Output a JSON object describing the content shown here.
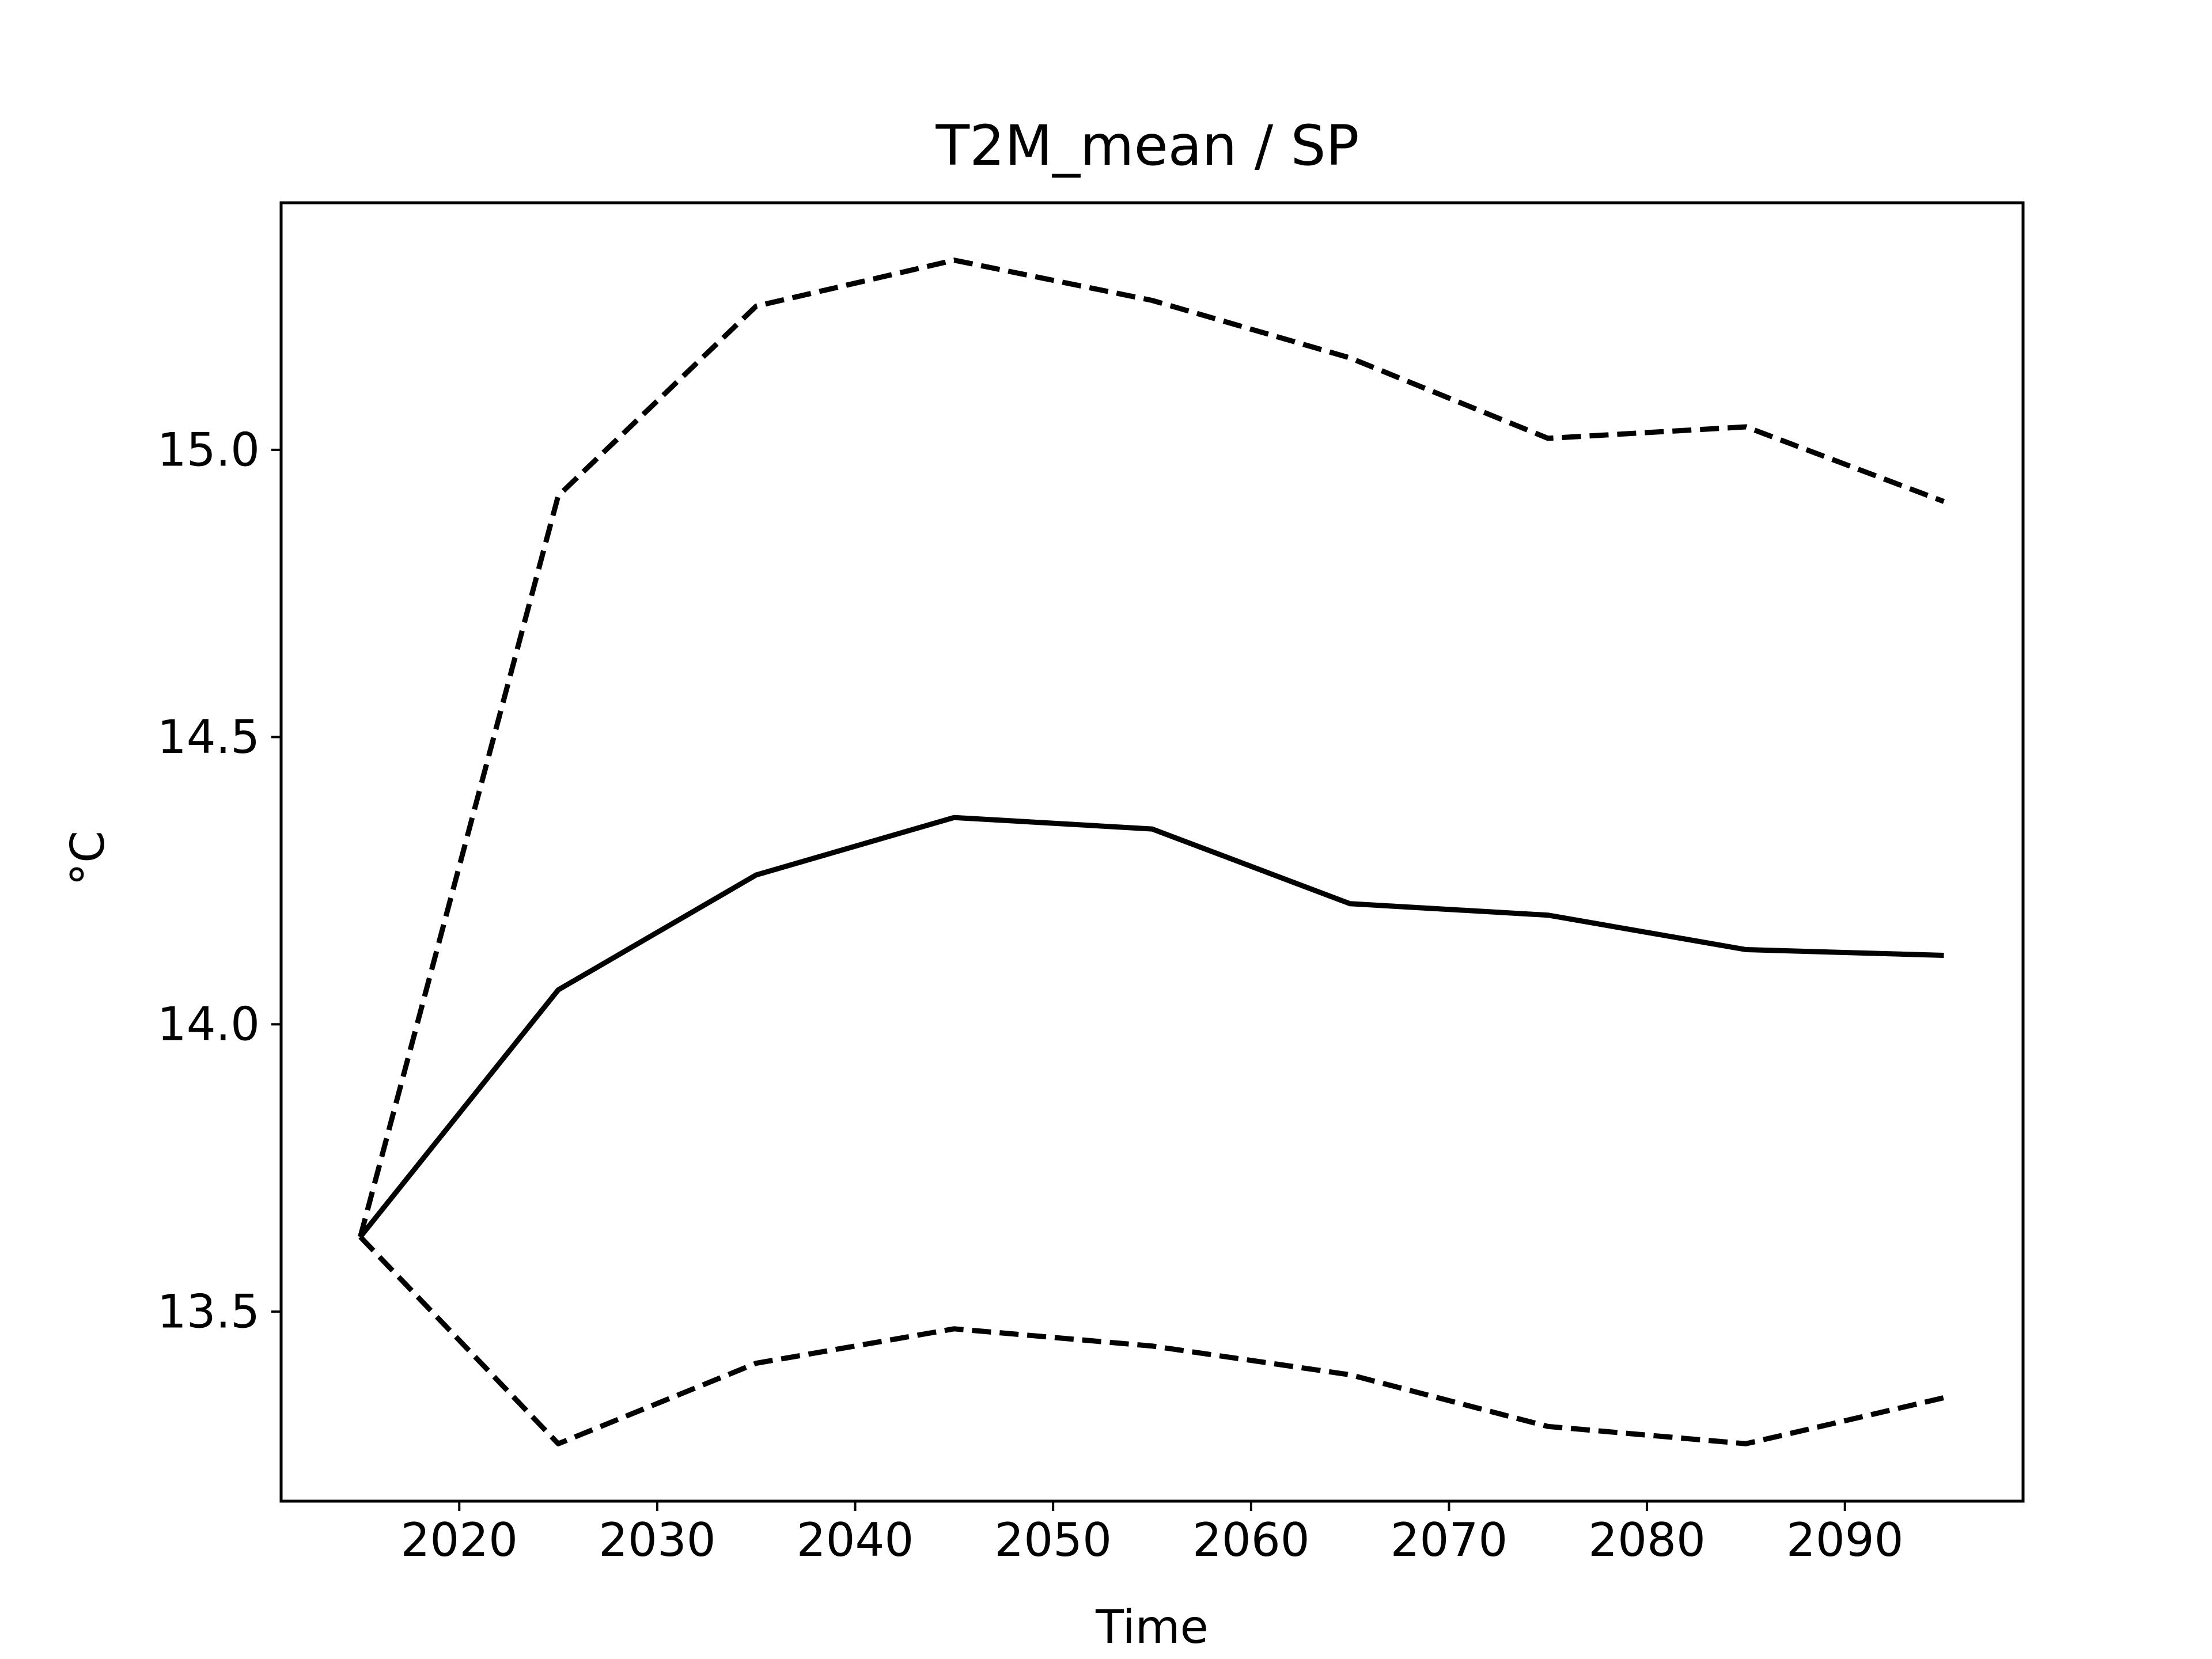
{
  "chart_data": {
    "type": "line",
    "title": "T2M_mean / SP",
    "xlabel": "Time",
    "ylabel": "°C",
    "xlim": [
      2011,
      2099
    ],
    "ylim": [
      13.17,
      15.43
    ],
    "grid": false,
    "x_ticks": [
      2020,
      2030,
      2040,
      2050,
      2060,
      2070,
      2080,
      2090
    ],
    "x_tick_labels": [
      "2020",
      "2030",
      "2040",
      "2050",
      "2060",
      "2070",
      "2080",
      "2090"
    ],
    "y_ticks": [
      13.5,
      14.0,
      14.5,
      15.0
    ],
    "y_tick_labels": [
      "13.5",
      "14.0",
      "14.5",
      "15.0"
    ],
    "x": [
      2015,
      2025,
      2035,
      2045,
      2055,
      2065,
      2075,
      2085,
      2095
    ],
    "series": [
      {
        "style": "solid",
        "color": "#000000",
        "values": [
          13.63,
          14.06,
          14.26,
          14.36,
          14.34,
          14.21,
          14.19,
          14.13,
          14.12
        ]
      },
      {
        "style": "dashed",
        "color": "#000000",
        "values": [
          13.63,
          14.92,
          15.25,
          15.33,
          15.26,
          15.16,
          15.02,
          15.04,
          14.91
        ]
      },
      {
        "style": "dashed",
        "color": "#000000",
        "values": [
          13.63,
          13.27,
          13.41,
          13.47,
          13.44,
          13.39,
          13.3,
          13.27,
          13.35
        ]
      }
    ]
  }
}
